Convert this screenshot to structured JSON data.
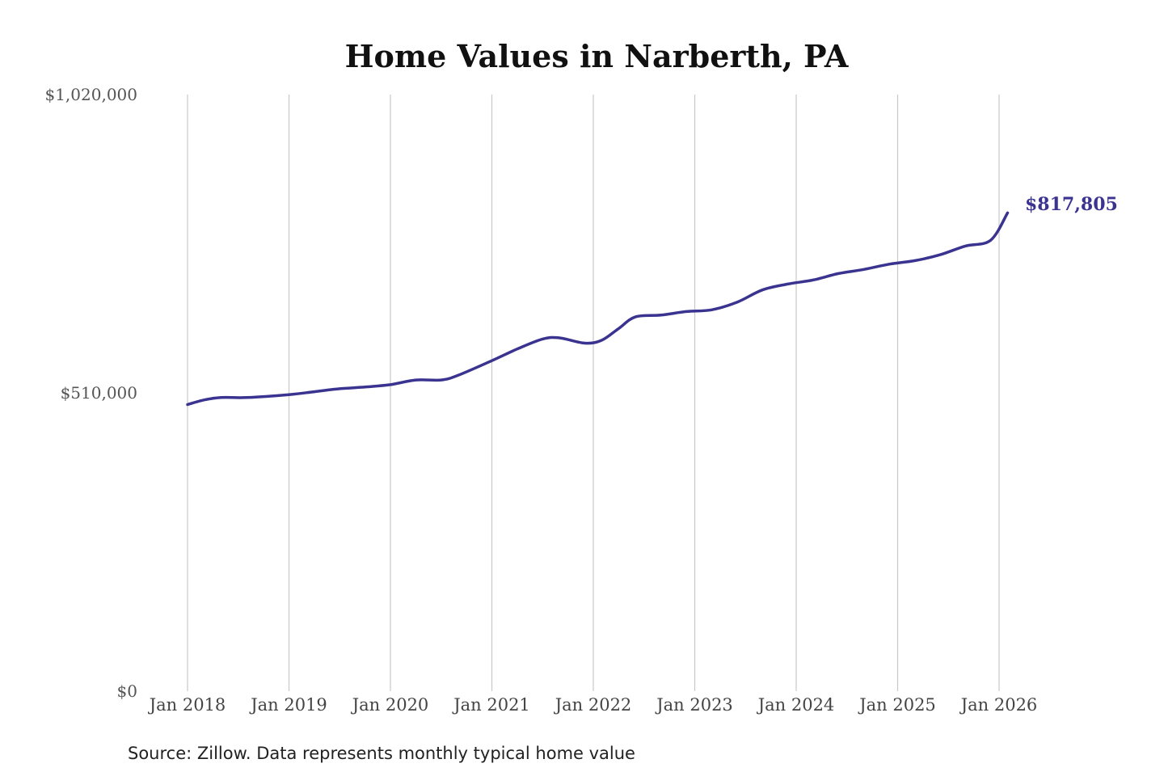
{
  "chart_data": {
    "type": "line",
    "title": "Home Values in Narberth, PA",
    "xlabel": "",
    "ylabel": "",
    "ylim": [
      0,
      1020000
    ],
    "yticks": [
      {
        "value": 0,
        "label": "$0"
      },
      {
        "value": 510000,
        "label": "$510,000"
      },
      {
        "value": 1020000,
        "label": "$1,020,000"
      }
    ],
    "xticks": [
      {
        "date": "2018-01",
        "label": "Jan 2018"
      },
      {
        "date": "2019-01",
        "label": "Jan 2019"
      },
      {
        "date": "2020-01",
        "label": "Jan 2020"
      },
      {
        "date": "2021-01",
        "label": "Jan 2021"
      },
      {
        "date": "2022-01",
        "label": "Jan 2022"
      },
      {
        "date": "2023-01",
        "label": "Jan 2023"
      },
      {
        "date": "2024-01",
        "label": "Jan 2024"
      },
      {
        "date": "2025-01",
        "label": "Jan 2025"
      },
      {
        "date": "2026-01",
        "label": "Jan 2026"
      }
    ],
    "xlim": [
      "2018-01",
      "2026-02"
    ],
    "grid": "vertical",
    "line_color": "#3a3390",
    "end_label": "$817,805",
    "series": [
      {
        "points": [
          {
            "date": "2018-01",
            "value": 490000
          },
          {
            "date": "2018-03",
            "value": 498000
          },
          {
            "date": "2018-05",
            "value": 502000
          },
          {
            "date": "2018-08",
            "value": 502000
          },
          {
            "date": "2019-01",
            "value": 507000
          },
          {
            "date": "2019-04",
            "value": 512000
          },
          {
            "date": "2019-07",
            "value": 517000
          },
          {
            "date": "2019-10",
            "value": 520000
          },
          {
            "date": "2020-01",
            "value": 524000
          },
          {
            "date": "2020-04",
            "value": 532000
          },
          {
            "date": "2020-07",
            "value": 532000
          },
          {
            "date": "2020-09",
            "value": 540000
          },
          {
            "date": "2021-01",
            "value": 565000
          },
          {
            "date": "2021-04",
            "value": 585000
          },
          {
            "date": "2021-07",
            "value": 602000
          },
          {
            "date": "2021-09",
            "value": 604000
          },
          {
            "date": "2021-12",
            "value": 595000
          },
          {
            "date": "2022-02",
            "value": 600000
          },
          {
            "date": "2022-04",
            "value": 620000
          },
          {
            "date": "2022-06",
            "value": 640000
          },
          {
            "date": "2022-09",
            "value": 643000
          },
          {
            "date": "2022-12",
            "value": 649000
          },
          {
            "date": "2023-03",
            "value": 652000
          },
          {
            "date": "2023-06",
            "value": 665000
          },
          {
            "date": "2023-09",
            "value": 686000
          },
          {
            "date": "2023-12",
            "value": 696000
          },
          {
            "date": "2024-03",
            "value": 703000
          },
          {
            "date": "2024-06",
            "value": 714000
          },
          {
            "date": "2024-09",
            "value": 721000
          },
          {
            "date": "2024-12",
            "value": 730000
          },
          {
            "date": "2025-03",
            "value": 736000
          },
          {
            "date": "2025-06",
            "value": 746000
          },
          {
            "date": "2025-09",
            "value": 761000
          },
          {
            "date": "2025-12",
            "value": 771000
          },
          {
            "date": "2026-02",
            "value": 817805
          }
        ]
      }
    ]
  },
  "source_note": "Source: Zillow. Data represents monthly typical home value"
}
